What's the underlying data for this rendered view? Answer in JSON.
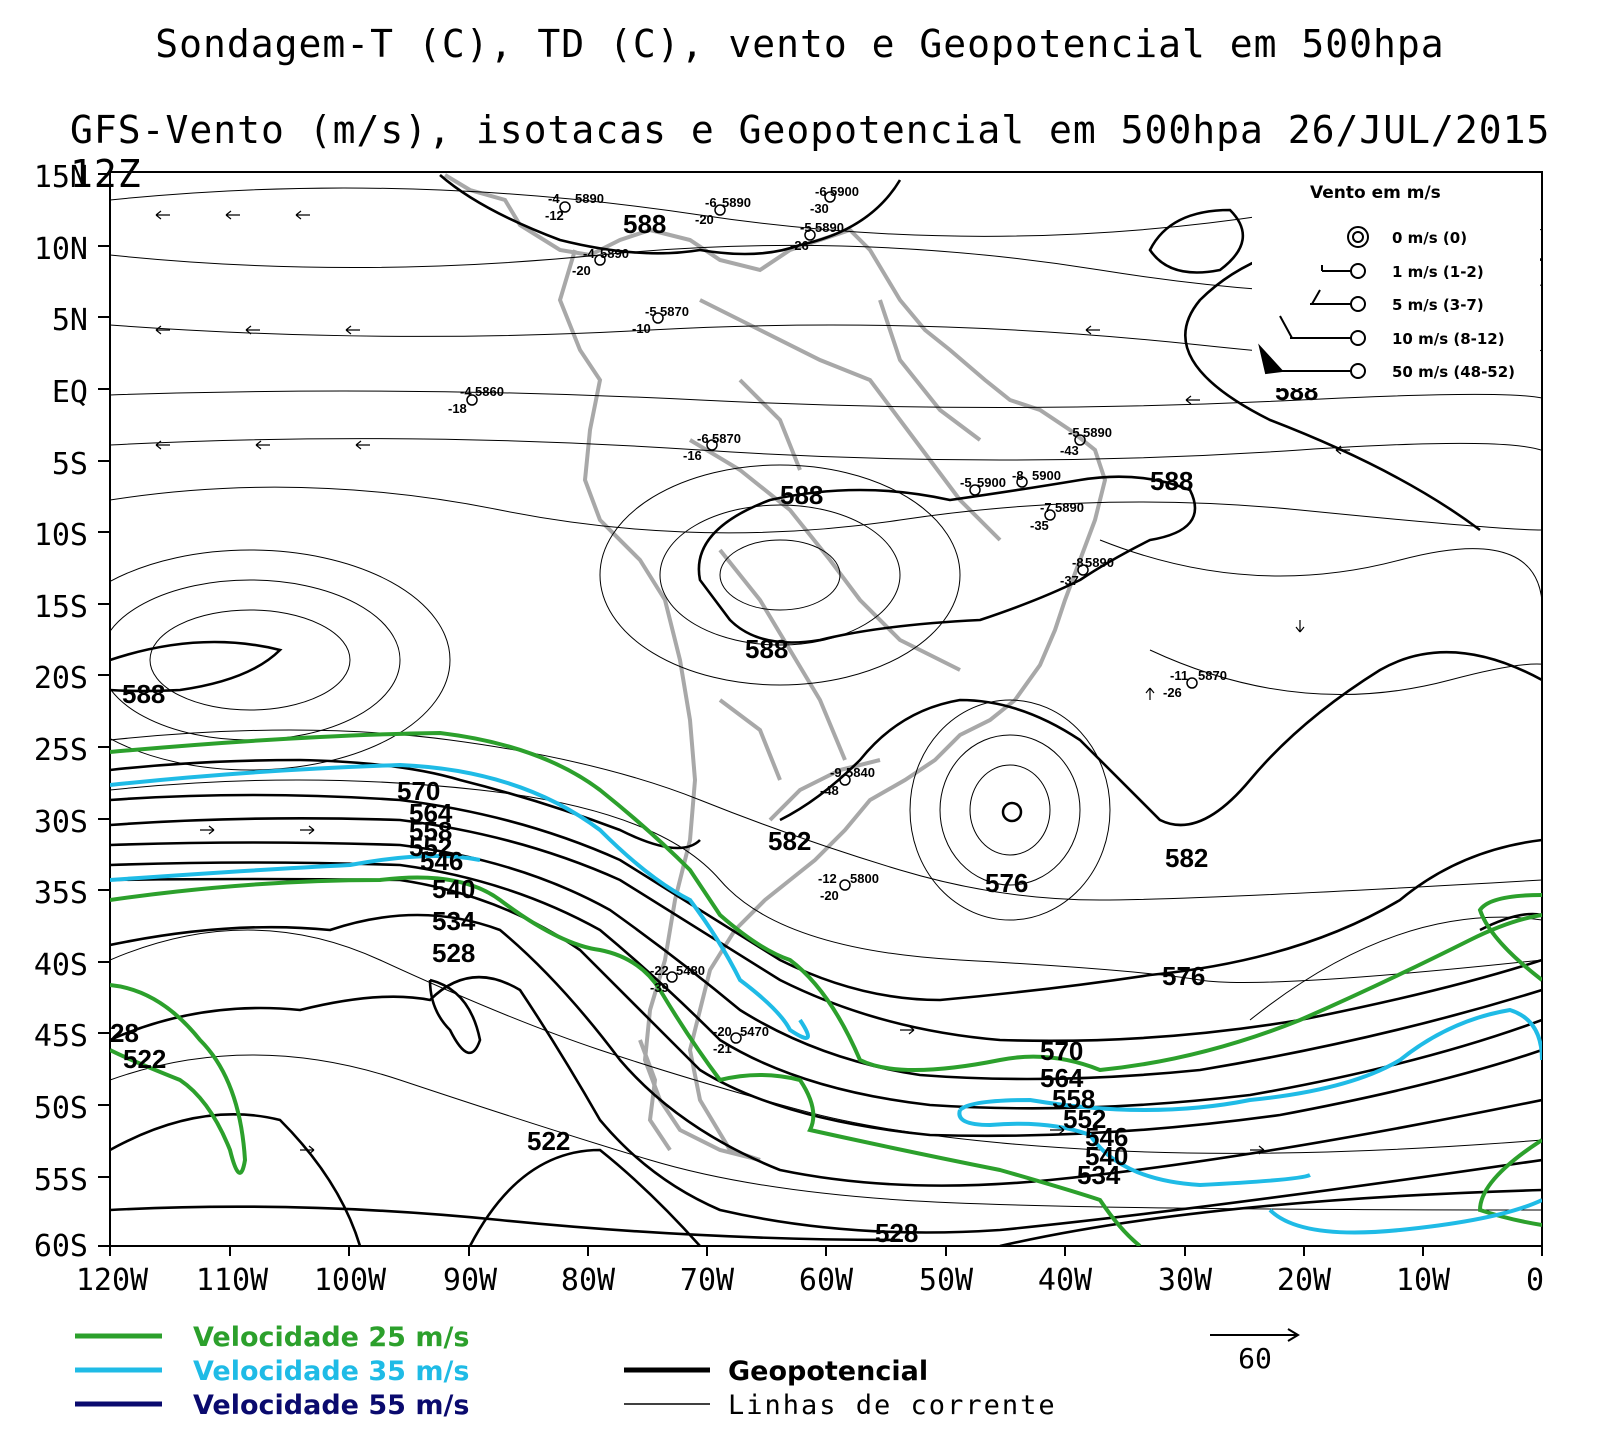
{
  "title_line1": "Sondagem-T (C), TD (C), vento e Geopotencial em 500hpa",
  "title_line2": "GFS-Vento (m/s), isotacas e Geopotencial em 500hpa 26/JUL/2015 12Z",
  "lat_labels": [
    "15N",
    "10N",
    "5N",
    "EQ",
    "5S",
    "10S",
    "15S",
    "20S",
    "25S",
    "30S",
    "35S",
    "40S",
    "45S",
    "50S",
    "55S",
    "60S"
  ],
  "lon_labels": [
    "120W",
    "110W",
    "100W",
    "90W",
    "80W",
    "70W",
    "60W",
    "50W",
    "40W",
    "30W",
    "20W",
    "10W",
    "0"
  ],
  "wind_legend": {
    "title": "Vento em m/s",
    "items": [
      "0 m/s (0)",
      "1 m/s (1-2)",
      "5 m/s (3-7)",
      "10 m/s (8-12)",
      "50 m/s (48-52)"
    ]
  },
  "speed_legend": [
    {
      "label": "Velocidade 25 m/s",
      "color": "#2ca02c"
    },
    {
      "label": "Velocidade 35 m/s",
      "color": "#1fbbe6"
    },
    {
      "label": "Velocidade 55 m/s",
      "color": "#0a0a6e"
    }
  ],
  "line_legend": [
    {
      "label": "Geopotencial"
    },
    {
      "label": "Linhas de corrente"
    }
  ],
  "reference_vector": "60",
  "contour_labels": [
    "588",
    "588",
    "588",
    "588",
    "588",
    "588",
    "582",
    "582",
    "576",
    "576",
    "570",
    "564",
    "558",
    "552",
    "546",
    "540",
    "534",
    "528",
    "522",
    "522",
    "528",
    "570",
    "564",
    "558",
    "552",
    "546",
    "540",
    "534",
    "28"
  ],
  "station_plots": [
    {
      "t": "-4",
      "td": "-12",
      "z": "5890"
    },
    {
      "t": "-6",
      "td": "-20",
      "z": "5890"
    },
    {
      "t": "-6",
      "td": "-30",
      "z": "5900"
    },
    {
      "t": "-5",
      "td": "-26",
      "z": "5890"
    },
    {
      "t": "-4",
      "td": "-20",
      "z": "5890"
    },
    {
      "t": "-5",
      "td": "-10",
      "z": "5870"
    },
    {
      "t": "-4",
      "td": "-18",
      "z": "5860"
    },
    {
      "t": "-6",
      "td": "-16",
      "z": "5870"
    },
    {
      "t": "-5",
      "td": "-43",
      "z": "5890"
    },
    {
      "t": "-5",
      "td": "",
      "z": "5900"
    },
    {
      "t": "-8",
      "td": "",
      "z": "5900"
    },
    {
      "t": "-7",
      "td": "-35",
      "z": "5890"
    },
    {
      "t": "-8",
      "td": "-37",
      "z": "5890"
    },
    {
      "t": "-11",
      "td": "-26",
      "z": "5870"
    },
    {
      "t": "-9",
      "td": "-48",
      "z": "5840"
    },
    {
      "t": "-12",
      "td": "-20",
      "z": "5800"
    },
    {
      "t": "-22",
      "td": "-39",
      "z": "5480"
    },
    {
      "t": "-20",
      "td": "-21",
      "z": "5470"
    }
  ],
  "colors": {
    "isotach_25": "#2ca02c",
    "isotach_35": "#1fbbe6",
    "isotach_55": "#0a0a6e",
    "coast": "#a0a0a0",
    "geopotential": "#000000"
  }
}
